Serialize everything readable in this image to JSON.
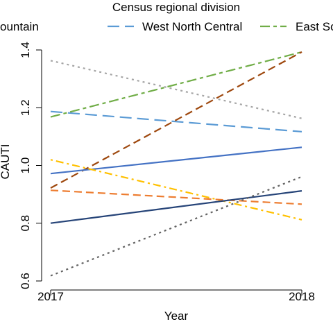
{
  "chart_data": {
    "type": "line",
    "x": [
      2017,
      2018
    ],
    "xlabel": "Year",
    "ylabel": "CAUTI",
    "ylim": [
      0.6,
      1.4
    ],
    "yticks": [
      "0.6",
      "0.8",
      "1.0",
      "1.2",
      "1.4"
    ],
    "xticks": [
      "2017",
      "2018"
    ],
    "grid": false,
    "legend": {
      "title": "Census regional division",
      "placement": "top",
      "entries": [
        {
          "label": "ountain",
          "color": "#7b3f1a",
          "dash": "solid"
        },
        {
          "label": "West North Central",
          "color": "#5b9bd5",
          "dash": "longdash"
        },
        {
          "label": "East So",
          "color": "#70ad47",
          "dash": "twodash"
        }
      ]
    },
    "series": [
      {
        "name": "West North Central",
        "values": [
          1.187,
          1.117
        ],
        "color": "#5b9bd5",
        "dash": "longdash"
      },
      {
        "values": [
          1.363,
          1.163
        ],
        "color": "#a5a5a5",
        "dash": "dotted"
      },
      {
        "name": "East So",
        "values": [
          1.168,
          1.393
        ],
        "color": "#70ad47",
        "dash": "twodash"
      },
      {
        "values": [
          0.922,
          1.393
        ],
        "color": "#9e480e",
        "dash": "dashed"
      },
      {
        "values": [
          0.972,
          1.063
        ],
        "color": "#4472c4",
        "dash": "solid"
      },
      {
        "values": [
          1.02,
          0.812
        ],
        "color": "#ffc000",
        "dash": "dotdash"
      },
      {
        "values": [
          0.914,
          0.866
        ],
        "color": "#ed7d31",
        "dash": "dashed"
      },
      {
        "values": [
          0.8,
          0.912
        ],
        "color": "#264478",
        "dash": "solid"
      },
      {
        "values": [
          0.618,
          0.961
        ],
        "color": "#636363",
        "dash": "dotted"
      }
    ]
  }
}
